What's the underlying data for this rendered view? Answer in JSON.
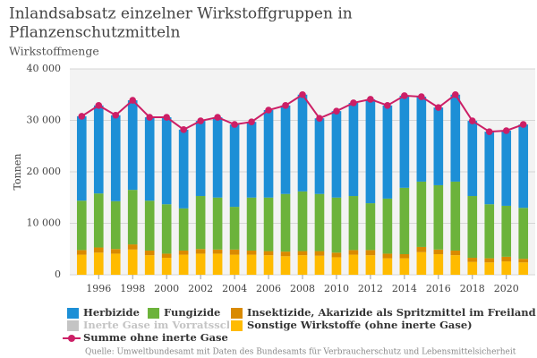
{
  "chart_data": {
    "type": "bar",
    "title": [
      "Inlandsabsatz einzelner Wirkstoffgruppen in",
      "Pflanzenschutzmitteln"
    ],
    "subtitle": "Wirkstoffmenge",
    "y_label": "Tonnen",
    "source": "Quelle: Umweltbundesamt mit Daten des Bundesamts für Verbraucherschutz und Lebensmittelsicherheit",
    "x": [
      1995,
      1996,
      1997,
      1998,
      1999,
      2000,
      2001,
      2002,
      2003,
      2004,
      2005,
      2006,
      2007,
      2008,
      2009,
      2010,
      2011,
      2012,
      2013,
      2014,
      2015,
      2016,
      2017,
      2018,
      2019,
      2020,
      2021
    ],
    "xlim": [
      1994.3,
      2021.7
    ],
    "xticks": [
      1996,
      1998,
      2000,
      2002,
      2004,
      2006,
      2008,
      2010,
      2012,
      2014,
      2016,
      2018,
      2020
    ],
    "ylim": [
      0,
      40000
    ],
    "yticks": [
      0,
      {
        "value": 10000,
        "label": "10 000"
      },
      {
        "value": 20000,
        "label": "20 000"
      },
      {
        "value": 30000,
        "label": "30 000"
      },
      {
        "value": 40000,
        "label": "40 000"
      }
    ],
    "grid": true,
    "stacked": true,
    "series": [
      {
        "name": "Herbizide",
        "color": "#1d8fd6",
        "values": [
          16400,
          17100,
          16700,
          17400,
          16200,
          16900,
          15300,
          14600,
          15600,
          16000,
          14700,
          17000,
          17200,
          18800,
          14700,
          16800,
          18100,
          20200,
          18100,
          17900,
          16500,
          15100,
          16900,
          14600,
          14100,
          14600,
          16200
        ]
      },
      {
        "name": "Fungizide",
        "color": "#6cb33b",
        "values": [
          9600,
          10500,
          9300,
          10600,
          9700,
          9600,
          8200,
          10300,
          10100,
          8300,
          10300,
          10400,
          11200,
          11600,
          11100,
          10700,
          10500,
          9100,
          10700,
          12900,
          12700,
          12500,
          13400,
          12000,
          10500,
          9900,
          9900
        ]
      },
      {
        "name": "Insektizide, Akarizide als Spritzmittel im Freiland",
        "color": "#d98a00",
        "values": [
          900,
          1000,
          900,
          1000,
          900,
          800,
          800,
          900,
          800,
          1000,
          800,
          800,
          900,
          800,
          900,
          900,
          900,
          1000,
          900,
          800,
          1000,
          900,
          900,
          800,
          800,
          900,
          700
        ]
      },
      {
        "name": "Sonstige Wirkstoffe (ohne inerte Gase)",
        "color": "#ffbb00",
        "values": [
          3900,
          4300,
          4100,
          4900,
          3800,
          3300,
          3900,
          4100,
          4100,
          3900,
          3900,
          3800,
          3600,
          3800,
          3700,
          3400,
          3900,
          3800,
          3200,
          3200,
          4400,
          4000,
          3800,
          2500,
          2400,
          2600,
          2400
        ]
      },
      {
        "name": "Summe ohne inerte Gase",
        "color": "#cc1f66",
        "type": "line",
        "values": [
          30800,
          32900,
          31000,
          33900,
          30600,
          30600,
          28200,
          29900,
          30600,
          29200,
          29700,
          32000,
          32900,
          35000,
          30400,
          31800,
          33400,
          34100,
          32900,
          34800,
          34600,
          32500,
          35000,
          29900,
          27800,
          28000,
          29200
        ]
      }
    ],
    "hidden_series": {
      "name": "Inerte Gase im Vorratsschutz",
      "color": "#c4c4c4"
    }
  }
}
